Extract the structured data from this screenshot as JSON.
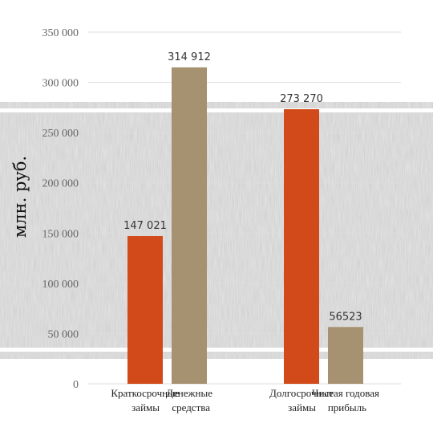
{
  "chart_data": {
    "type": "bar",
    "title": "",
    "ylabel": "млн. руб.",
    "xlabel": "",
    "ylim": [
      0,
      350000
    ],
    "yticks": [
      {
        "value": 0,
        "label": "0"
      },
      {
        "value": 50000,
        "label": "50 000"
      },
      {
        "value": 100000,
        "label": "100 000"
      },
      {
        "value": 150000,
        "label": "150 000"
      },
      {
        "value": 200000,
        "label": "200 000"
      },
      {
        "value": 250000,
        "label": "250 000"
      },
      {
        "value": 300000,
        "label": "300 000"
      },
      {
        "value": 350000,
        "label": "350 000"
      }
    ],
    "grid": true,
    "bars": [
      {
        "category": [
          "Краткосрочные",
          "займы"
        ],
        "value": 147021,
        "label": "147 021",
        "color": "#d24a1a"
      },
      {
        "category": [
          "Денежные",
          "средства"
        ],
        "value": 314912,
        "label": "314 912",
        "color": "#a69170"
      },
      {
        "category": [
          "Долгосрочные",
          "займы"
        ],
        "value": 273270,
        "label": "273 270",
        "color": "#d24a1a"
      },
      {
        "category": [
          "Чистая годовая",
          "прибыль"
        ],
        "value": 56523,
        "label": "56523",
        "color": "#a69170"
      }
    ]
  }
}
